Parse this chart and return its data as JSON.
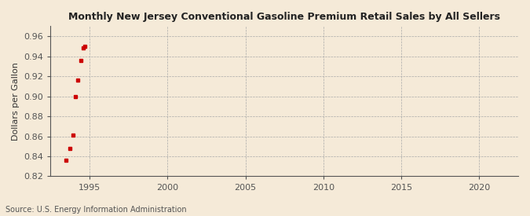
{
  "title": "Monthly New Jersey Conventional Gasoline Premium Retail Sales by All Sellers",
  "ylabel": "Dollars per Gallon",
  "source": "Source: U.S. Energy Information Administration",
  "background_color": "#f5ead8",
  "data_color": "#cc0000",
  "xlim": [
    1992.5,
    2022.5
  ],
  "ylim": [
    0.82,
    0.97
  ],
  "xticks": [
    1995,
    2000,
    2005,
    2010,
    2015,
    2020
  ],
  "yticks": [
    0.82,
    0.84,
    0.86,
    0.88,
    0.9,
    0.92,
    0.94,
    0.96
  ],
  "x_data": [
    1993.5,
    1993.75,
    1993.92,
    1994.08,
    1994.25,
    1994.42,
    1994.58,
    1994.67
  ],
  "y_data": [
    0.836,
    0.848,
    0.861,
    0.9,
    0.916,
    0.936,
    0.948,
    0.95
  ]
}
